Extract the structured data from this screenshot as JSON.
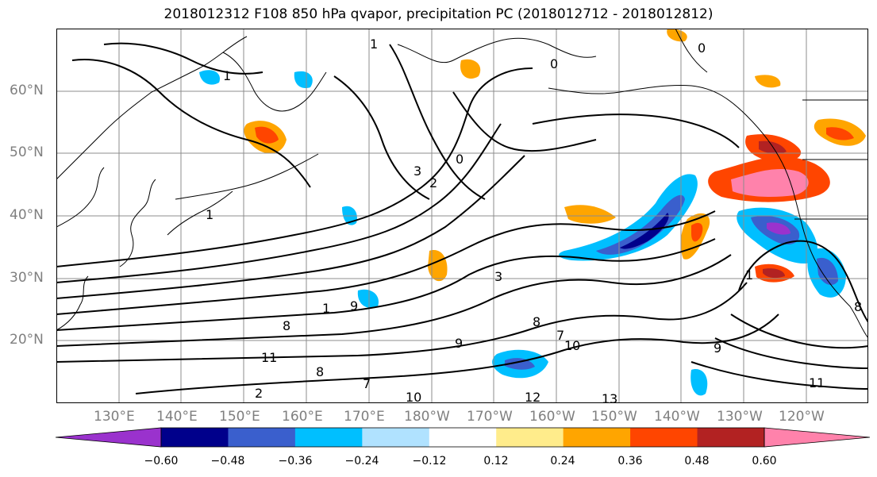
{
  "title": "2018012312 F108 850 hPa qvapor, precipitation PC (2018012712 - 2018012812)",
  "lat_labels": [
    "60°N",
    "50°N",
    "40°N",
    "30°N",
    "20°N"
  ],
  "lon_labels": [
    "130°E",
    "140°E",
    "150°E",
    "160°E",
    "170°E",
    "180°W",
    "170°W",
    "160°W",
    "150°W",
    "140°W",
    "130°W",
    "120°W"
  ],
  "contour_labels": [
    "1",
    "1",
    "0",
    "0",
    "3",
    "2",
    "0",
    "3",
    "1",
    "1",
    "9",
    "8",
    "7",
    "8",
    "9",
    "10",
    "11",
    "8",
    "7",
    "10",
    "12",
    "13",
    "9",
    "8",
    "11",
    "1",
    "2"
  ],
  "colorbar": {
    "colors": [
      "#9a32cd",
      "#00008b",
      "#3a5fcd",
      "#00bfff",
      "#b0e2ff",
      "#ffffff",
      "#ffec8b",
      "#ffa500",
      "#ff4500",
      "#b22222",
      "#ff82ab"
    ],
    "tick_labels": [
      "−0.60",
      "−0.48",
      "−0.36",
      "−0.24",
      "−0.12",
      "0.12",
      "0.24",
      "0.36",
      "0.48",
      "0.60"
    ]
  },
  "colors": {
    "coast": "#000000",
    "grid": "#8c8c8c"
  }
}
